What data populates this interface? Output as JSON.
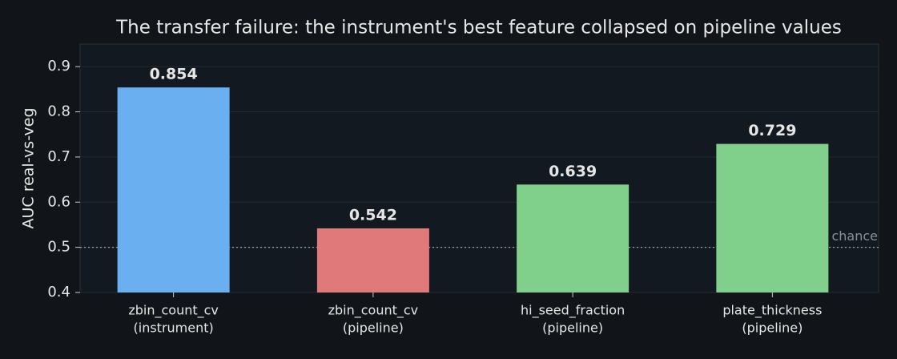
{
  "chart_data": {
    "type": "bar",
    "title": "The transfer failure: the instrument's best feature collapsed on pipeline values",
    "ylabel": "AUC real-vs-veg",
    "categories": [
      [
        "zbin_count_cv",
        "(instrument)"
      ],
      [
        "zbin_count_cv",
        "(pipeline)"
      ],
      [
        "hi_seed_fraction",
        "(pipeline)"
      ],
      [
        "plate_thickness",
        "(pipeline)"
      ]
    ],
    "values": [
      0.854,
      0.542,
      0.639,
      0.729
    ],
    "colors": [
      "#6ab0f0",
      "#e07a7a",
      "#80d08c",
      "#80d08c"
    ],
    "ylim": [
      0.4,
      0.95
    ],
    "yticks": [
      0.4,
      0.5,
      0.6,
      0.7,
      0.8,
      0.9
    ],
    "grid": true,
    "reference_line": {
      "value": 0.5,
      "label": "chance"
    }
  }
}
